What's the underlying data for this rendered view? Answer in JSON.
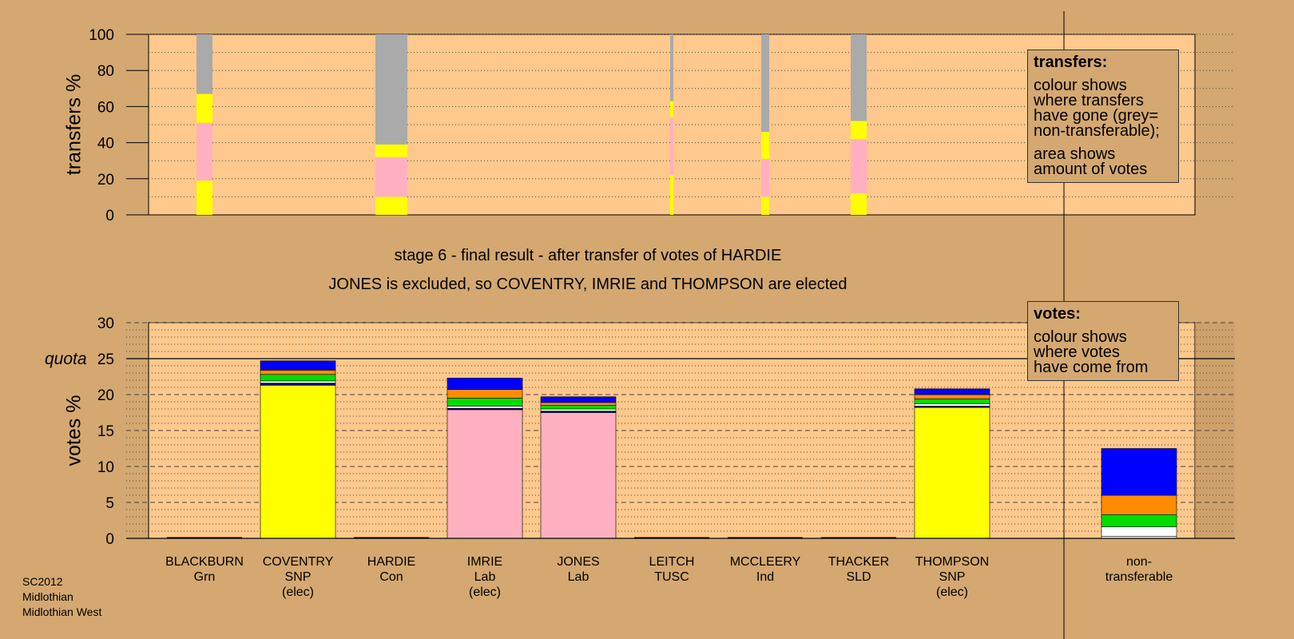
{
  "chart_data": [
    {
      "type": "bar",
      "name": "transfers",
      "ylabel": "transfers %",
      "ylim": [
        0,
        100
      ],
      "yticks": [
        0,
        20,
        40,
        60,
        80,
        100
      ],
      "categories": [
        "BLACKBURN",
        "COVENTRY",
        "HARDIE",
        "IMRIE",
        "JONES",
        "LEITCH",
        "MCCLEERY",
        "THACKER",
        "THOMPSON"
      ],
      "bars": [
        {
          "category": "BLACKBURN",
          "width": "wide",
          "segments": [
            {
              "color": "#FFFF00",
              "value": 19
            },
            {
              "color": "#FFB0C0",
              "value": 32
            },
            {
              "color": "#FFFF00",
              "value": 16
            },
            {
              "color": "#AAAAAA",
              "value": 33
            }
          ]
        },
        {
          "category": "HARDIE",
          "width": "widest",
          "segments": [
            {
              "color": "#FFFF00",
              "value": 10
            },
            {
              "color": "#FFB0C0",
              "value": 22
            },
            {
              "color": "#FFFF00",
              "value": 7
            },
            {
              "color": "#AAAAAA",
              "value": 61
            }
          ]
        },
        {
          "category": "LEITCH",
          "width": "thin",
          "segments": [
            {
              "color": "#FFFF00",
              "value": 22
            },
            {
              "color": "#FFB0C0",
              "value": 32
            },
            {
              "color": "#FFFF00",
              "value": 9
            },
            {
              "color": "#AAAAAA",
              "value": 37
            }
          ]
        },
        {
          "category": "MCCLEERY",
          "width": "narrow",
          "segments": [
            {
              "color": "#FFFF00",
              "value": 10
            },
            {
              "color": "#FFB0C0",
              "value": 21
            },
            {
              "color": "#FFFF00",
              "value": 15
            },
            {
              "color": "#AAAAAA",
              "value": 54
            }
          ]
        },
        {
          "category": "THACKER",
          "width": "wide",
          "segments": [
            {
              "color": "#FFFF00",
              "value": 12
            },
            {
              "color": "#FFB0C0",
              "value": 30
            },
            {
              "color": "#FFFF00",
              "value": 10
            },
            {
              "color": "#AAAAAA",
              "value": 48
            }
          ]
        }
      ]
    },
    {
      "type": "bar",
      "name": "votes",
      "ylabel": "votes %",
      "ylim": [
        0,
        30
      ],
      "yticks": [
        0,
        5,
        10,
        15,
        20,
        25,
        30
      ],
      "quota": 25,
      "quota_label": "quota",
      "candidates": [
        {
          "name": "BLACKBURN",
          "party": "Grn",
          "status": "",
          "segments": []
        },
        {
          "name": "COVENTRY",
          "party": "SNP",
          "status": "(elec)",
          "segments": [
            {
              "color": "#FFFF00",
              "value": 21.3
            },
            {
              "color": "#000080",
              "value": 0.3
            },
            {
              "color": "#FFFFFF",
              "value": 0.3
            },
            {
              "color": "#00DD00",
              "value": 0.9
            },
            {
              "color": "#FF8C00",
              "value": 0.6
            },
            {
              "color": "#0000FF",
              "value": 1.3
            }
          ]
        },
        {
          "name": "HARDIE",
          "party": "Con",
          "status": "",
          "segments": []
        },
        {
          "name": "IMRIE",
          "party": "Lab",
          "status": "(elec)",
          "segments": [
            {
              "color": "#FFB0C0",
              "value": 17.9
            },
            {
              "color": "#000080",
              "value": 0.2
            },
            {
              "color": "#FFFFFF",
              "value": 0.3
            },
            {
              "color": "#00DD00",
              "value": 1.1
            },
            {
              "color": "#FF8C00",
              "value": 1.2
            },
            {
              "color": "#0000FF",
              "value": 1.6
            }
          ]
        },
        {
          "name": "JONES",
          "party": "Lab",
          "status": "",
          "segments": [
            {
              "color": "#FFB0C0",
              "value": 17.5
            },
            {
              "color": "#000080",
              "value": 0.2
            },
            {
              "color": "#FFFFFF",
              "value": 0.3
            },
            {
              "color": "#00DD00",
              "value": 0.5
            },
            {
              "color": "#FF8C00",
              "value": 0.4
            },
            {
              "color": "#0000FF",
              "value": 0.8
            }
          ]
        },
        {
          "name": "LEITCH",
          "party": "TUSC",
          "status": "",
          "segments": []
        },
        {
          "name": "MCCLEERY",
          "party": "Ind",
          "status": "",
          "segments": []
        },
        {
          "name": "THACKER",
          "party": "SLD",
          "status": "",
          "segments": []
        },
        {
          "name": "THOMPSON",
          "party": "SNP",
          "status": "(elec)",
          "segments": [
            {
              "color": "#FFFF00",
              "value": 18.2
            },
            {
              "color": "#000080",
              "value": 0.2
            },
            {
              "color": "#FFFFFF",
              "value": 0.3
            },
            {
              "color": "#00DD00",
              "value": 0.7
            },
            {
              "color": "#FF8C00",
              "value": 0.6
            },
            {
              "color": "#0000FF",
              "value": 0.8
            }
          ]
        },
        {
          "name": "non-\ntransferable",
          "party": "",
          "status": "",
          "segments": [
            {
              "color": "#FFFFFF",
              "value": 0.3
            },
            {
              "color": "#FFFFFF",
              "value": 1.3
            },
            {
              "color": "#00DD00",
              "value": 1.7
            },
            {
              "color": "#FF8C00",
              "value": 2.7
            },
            {
              "color": "#0000FF",
              "value": 6.5
            }
          ]
        }
      ]
    }
  ],
  "stage_title": "stage 6 - final result - after transfer of votes of HARDIE",
  "stage_subtitle": "JONES is excluded, so COVENTRY, IMRIE and THOMPSON are elected",
  "legend_transfers": {
    "title": "transfers:",
    "lines1": [
      "colour shows",
      "where transfers",
      "have gone (grey=",
      "non-transferable);"
    ],
    "lines2": [
      "area shows",
      "amount of votes"
    ]
  },
  "legend_votes": {
    "title": "votes:",
    "lines1": [
      "colour shows",
      "where votes",
      "have come from"
    ]
  },
  "footer": {
    "line1": "SC2012",
    "line2": "Midlothian",
    "line3": "Midlothian West"
  },
  "colors": {
    "background": "#D4A870",
    "plot_area": "#FFC88C",
    "shade": "#C89A66"
  }
}
